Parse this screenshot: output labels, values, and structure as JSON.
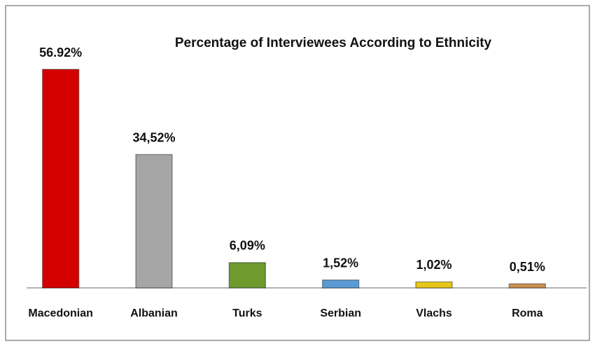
{
  "chart_data": {
    "type": "bar",
    "title": "Percentage of Interviewees According to Ethnicity",
    "categories": [
      "Macedonian",
      "Albanian",
      "Turks",
      "Serbian",
      "Vlachs",
      "Roma"
    ],
    "values": [
      56.92,
      34.52,
      6.09,
      1.52,
      1.02,
      0.51
    ],
    "value_labels": [
      "56.92%",
      "34,52%",
      "6,09%",
      "1,52%",
      "1,02%",
      "0,51%"
    ],
    "colors": [
      "#d40000",
      "#a6a6a6",
      "#6e9a2e",
      "#5b9bd5",
      "#e6c619",
      "#c8914e"
    ]
  }
}
